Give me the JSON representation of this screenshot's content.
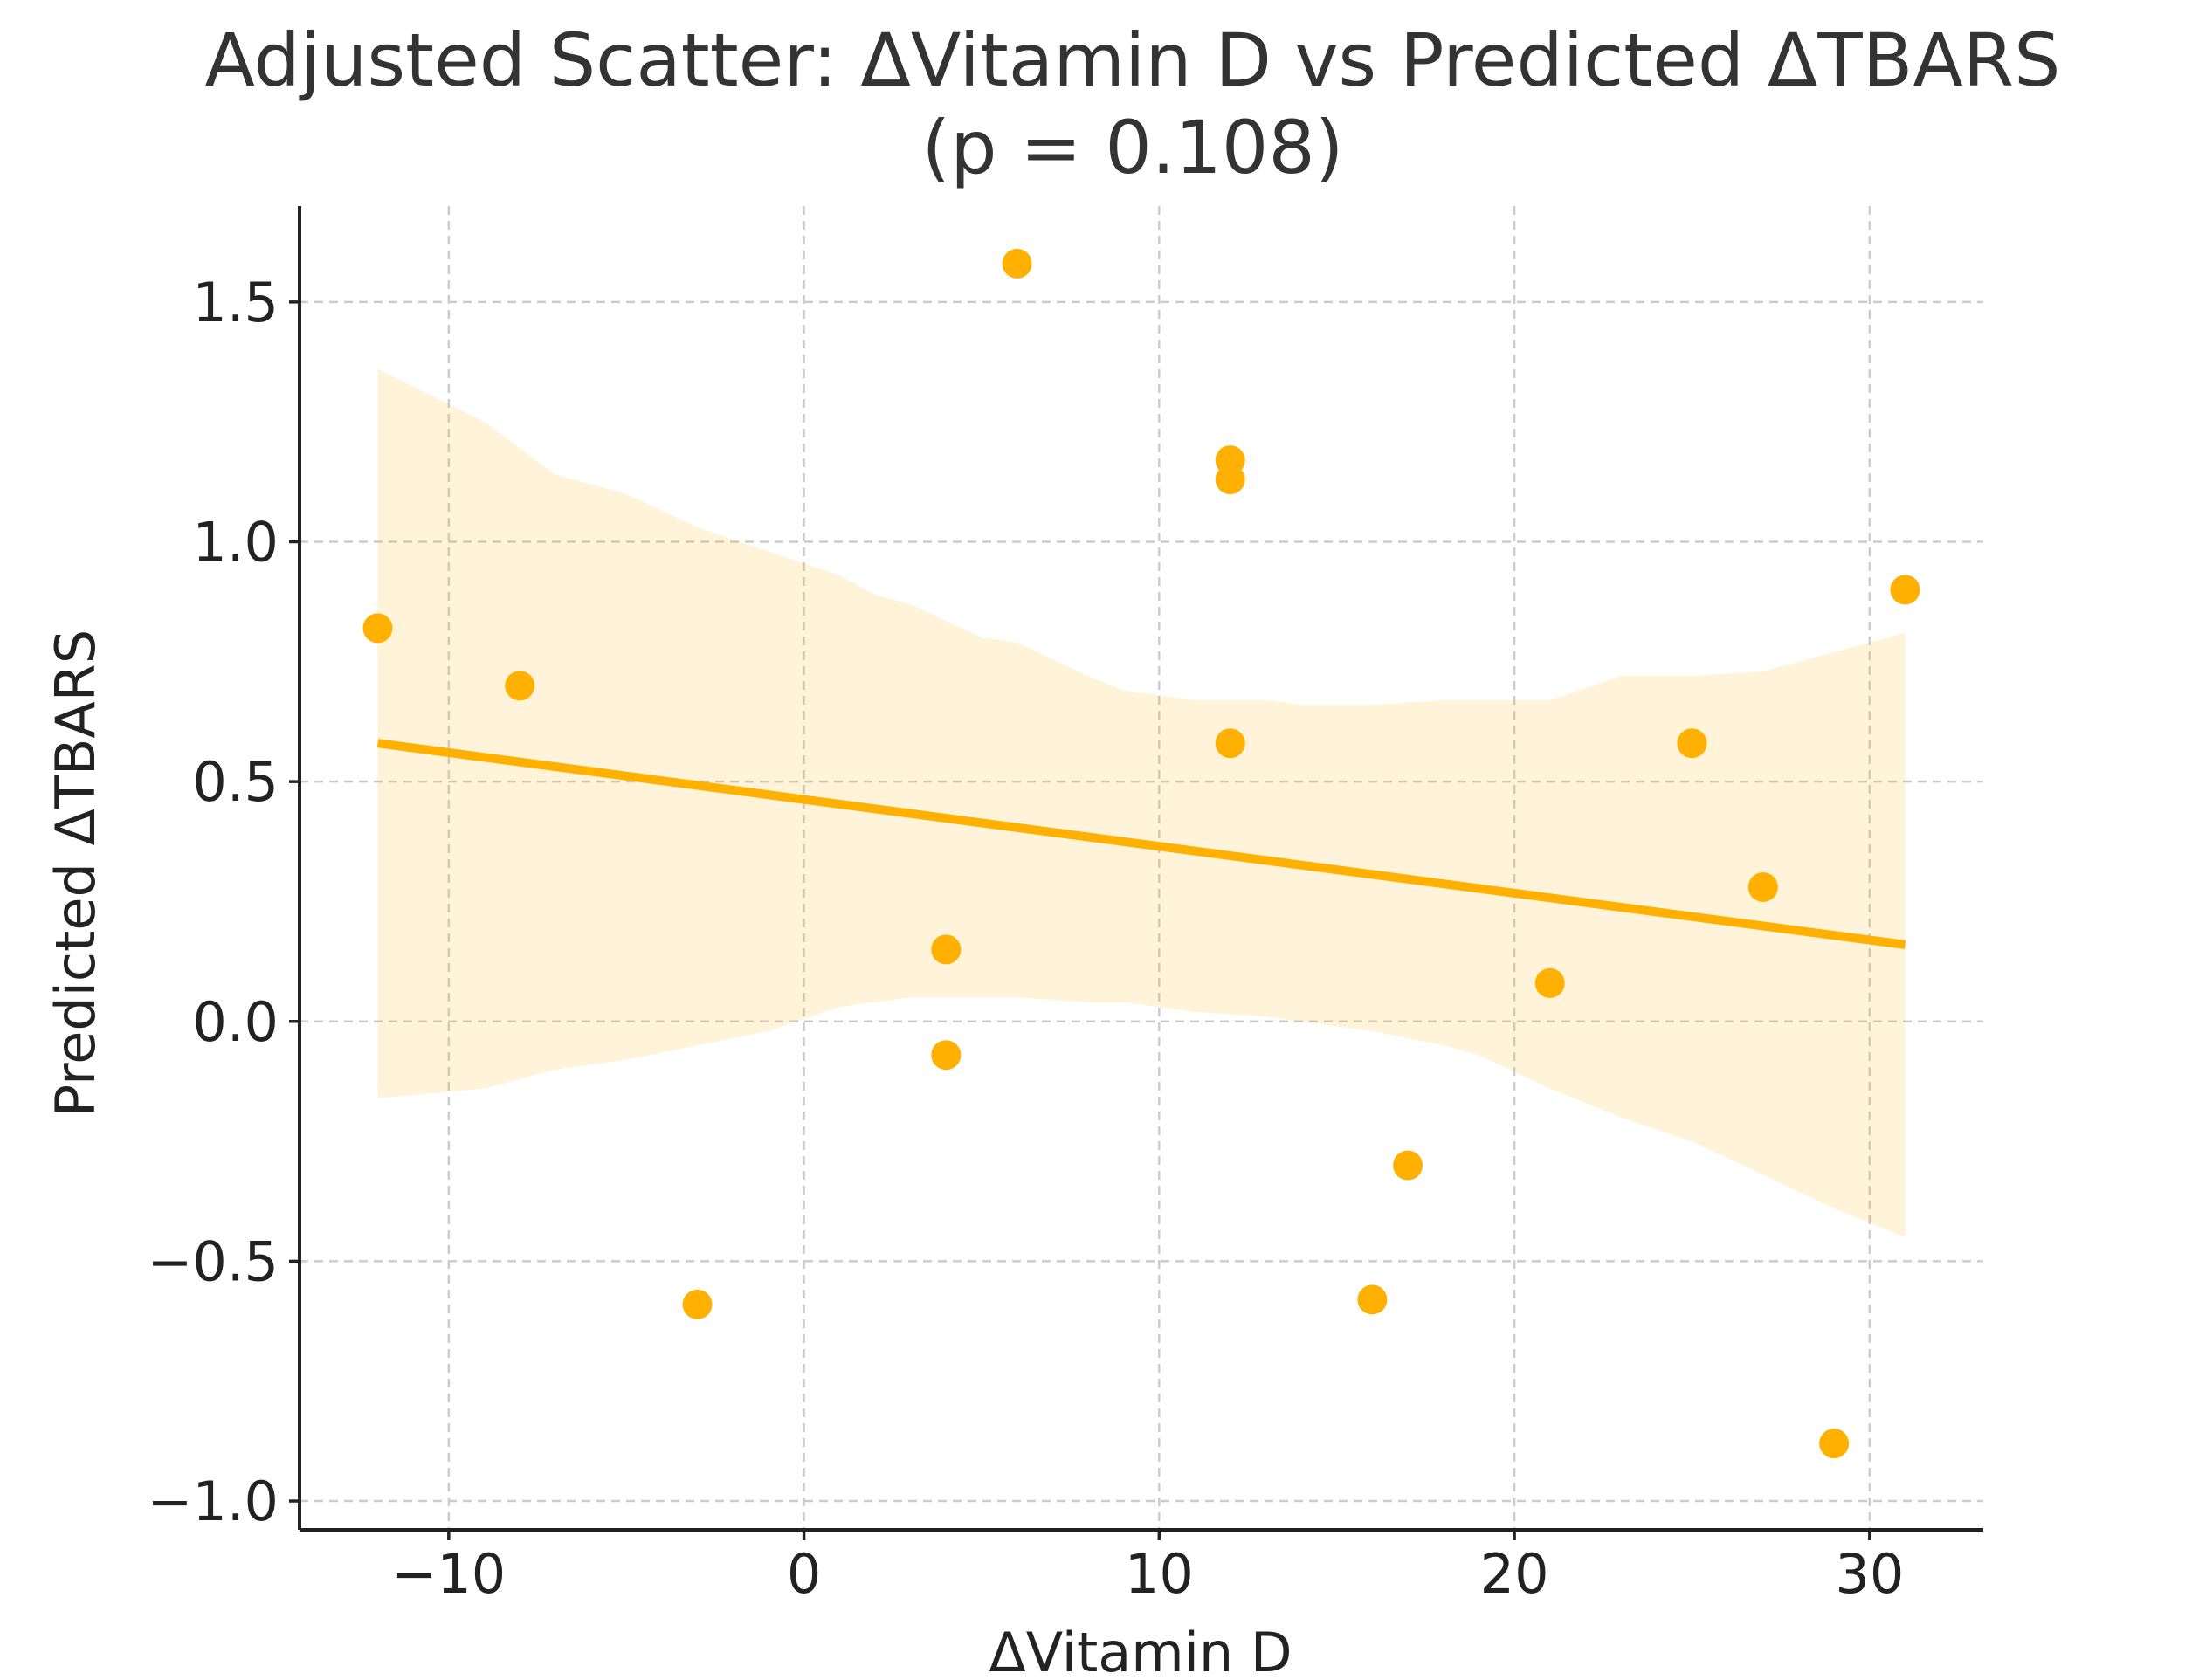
{
  "chart_data": {
    "type": "scatter",
    "title_line1": "Adjusted Scatter: ΔVitamin D vs Predicted ΔTBARS",
    "title_line2": "(p = 0.108)",
    "xlabel": "ΔVitamin D",
    "ylabel": "Predicted ΔTBARS",
    "xlim": [
      -14.2,
      33.2
    ],
    "ylim": [
      -1.06,
      1.7
    ],
    "xticks": [
      -10,
      0,
      10,
      20,
      30
    ],
    "xtick_labels": [
      "−10",
      "0",
      "10",
      "20",
      "30"
    ],
    "yticks": [
      -1.0,
      -0.5,
      0.0,
      0.5,
      1.0,
      1.5
    ],
    "ytick_labels": [
      "−1.0",
      "−0.5",
      "0.0",
      "0.5",
      "1.0",
      "1.5"
    ],
    "grid": true,
    "color": "#FFB000",
    "points": [
      {
        "x": -12,
        "y": 0.82
      },
      {
        "x": -8,
        "y": 0.7
      },
      {
        "x": -3,
        "y": -0.59
      },
      {
        "x": 4,
        "y": 0.15
      },
      {
        "x": 4,
        "y": -0.07
      },
      {
        "x": 6,
        "y": 1.58
      },
      {
        "x": 12,
        "y": 1.17
      },
      {
        "x": 12,
        "y": 1.13
      },
      {
        "x": 12,
        "y": 0.58
      },
      {
        "x": 16,
        "y": -0.58
      },
      {
        "x": 17,
        "y": -0.3
      },
      {
        "x": 21,
        "y": 0.08
      },
      {
        "x": 25,
        "y": 0.58
      },
      {
        "x": 27,
        "y": 0.28
      },
      {
        "x": 29,
        "y": -0.88
      },
      {
        "x": 31,
        "y": 0.9
      }
    ],
    "regression_line": {
      "x": [
        -12,
        31
      ],
      "y": [
        0.58,
        0.16
      ]
    },
    "confidence_band": {
      "x": [
        -12,
        -9,
        -7,
        -5,
        -3,
        -1,
        1,
        2,
        3,
        5,
        6,
        8,
        9,
        11,
        13,
        14,
        16,
        18,
        19,
        21,
        23,
        25,
        27,
        29,
        31
      ],
      "upper": [
        1.36,
        1.25,
        1.14,
        1.1,
        1.03,
        0.98,
        0.93,
        0.89,
        0.87,
        0.8,
        0.79,
        0.72,
        0.69,
        0.67,
        0.67,
        0.66,
        0.66,
        0.67,
        0.67,
        0.67,
        0.72,
        0.72,
        0.73,
        0.77,
        0.81
      ],
      "lower": [
        -0.16,
        -0.14,
        -0.1,
        -0.08,
        -0.05,
        -0.02,
        0.03,
        0.04,
        0.05,
        0.05,
        0.05,
        0.04,
        0.04,
        0.02,
        0.01,
        0.0,
        -0.02,
        -0.05,
        -0.07,
        -0.14,
        -0.2,
        -0.25,
        -0.32,
        -0.39,
        -0.45
      ]
    }
  }
}
